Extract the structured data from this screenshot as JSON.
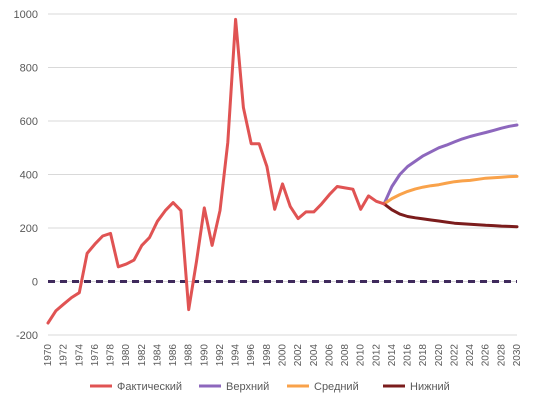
{
  "colors": {
    "actual": "#e05353",
    "upper": "#8d67bd",
    "middle": "#f9a24a",
    "lower": "#7b1c1c",
    "zero_line": "#3f2a5c",
    "grid": "#d9d9d9"
  },
  "chart_data": {
    "type": "line",
    "title": "",
    "xlabel": "",
    "ylabel": "",
    "ylim": [
      -200,
      1000
    ],
    "yticks": [
      -200,
      0,
      200,
      400,
      600,
      800,
      1000
    ],
    "yticklabels": [
      "-200",
      "0",
      "200",
      "400",
      "600",
      "800",
      "1000"
    ],
    "xlim": [
      1970,
      2030
    ],
    "xticks": [
      1970,
      1972,
      1974,
      1976,
      1978,
      1980,
      1982,
      1984,
      1986,
      1988,
      1990,
      1992,
      1994,
      1996,
      1998,
      2000,
      2002,
      2004,
      2006,
      2008,
      2010,
      2012,
      2014,
      2016,
      2018,
      2020,
      2022,
      2024,
      2026,
      2028,
      2030
    ],
    "xticklabels": [
      "1970",
      "1972",
      "1974",
      "1976",
      "1978",
      "1980",
      "1982",
      "1984",
      "1986",
      "1988",
      "1990",
      "1992",
      "1994",
      "1996",
      "1998",
      "2000",
      "2002",
      "2004",
      "2006",
      "2008",
      "2010",
      "2012",
      "2014",
      "2016",
      "2018",
      "2020",
      "2022",
      "2024",
      "2026",
      "2028",
      "2030"
    ],
    "grid": "horizontal",
    "legend_position": "bottom",
    "series": [
      {
        "name": "Фактический",
        "color_key": "actual",
        "x": [
          1970,
          1971,
          1972,
          1973,
          1974,
          1975,
          1976,
          1977,
          1978,
          1979,
          1980,
          1981,
          1982,
          1983,
          1984,
          1985,
          1986,
          1987,
          1988,
          1989,
          1990,
          1991,
          1992,
          1993,
          1994,
          1995,
          1996,
          1997,
          1998,
          1999,
          2000,
          2001,
          2002,
          2003,
          2004,
          2005,
          2006,
          2007,
          2008,
          2009,
          2010,
          2011,
          2012,
          2013
        ],
        "y": [
          -155,
          -110,
          -85,
          -60,
          -42,
          105,
          140,
          170,
          180,
          55,
          65,
          80,
          135,
          165,
          225,
          265,
          295,
          265,
          -105,
          75,
          275,
          135,
          265,
          520,
          980,
          650,
          515,
          515,
          430,
          270,
          365,
          280,
          235,
          260,
          260,
          290,
          325,
          355,
          350,
          345,
          270,
          320,
          300,
          290
        ]
      },
      {
        "name": "Верхний",
        "color_key": "upper",
        "x": [
          2013,
          2014,
          2015,
          2016,
          2017,
          2018,
          2019,
          2020,
          2021,
          2022,
          2023,
          2024,
          2025,
          2026,
          2027,
          2028,
          2029,
          2030
        ],
        "y": [
          290,
          355,
          400,
          430,
          450,
          470,
          485,
          500,
          510,
          522,
          533,
          542,
          550,
          557,
          565,
          573,
          580,
          585
        ]
      },
      {
        "name": "Средний",
        "color_key": "middle",
        "x": [
          2013,
          2014,
          2015,
          2016,
          2017,
          2018,
          2019,
          2020,
          2021,
          2022,
          2023,
          2024,
          2025,
          2026,
          2027,
          2028,
          2029,
          2030
        ],
        "y": [
          290,
          310,
          325,
          337,
          346,
          353,
          358,
          362,
          368,
          373,
          376,
          378,
          382,
          386,
          388,
          390,
          392,
          393
        ]
      },
      {
        "name": "Нижний",
        "color_key": "lower",
        "x": [
          2013,
          2014,
          2015,
          2016,
          2017,
          2018,
          2019,
          2020,
          2021,
          2022,
          2023,
          2024,
          2025,
          2026,
          2027,
          2028,
          2029,
          2030
        ],
        "y": [
          290,
          268,
          252,
          243,
          238,
          234,
          230,
          226,
          222,
          218,
          216,
          214,
          212,
          210,
          209,
          207,
          206,
          205
        ]
      }
    ],
    "reference_line": {
      "y": 0,
      "style": "dashed",
      "color_key": "zero_line"
    }
  }
}
